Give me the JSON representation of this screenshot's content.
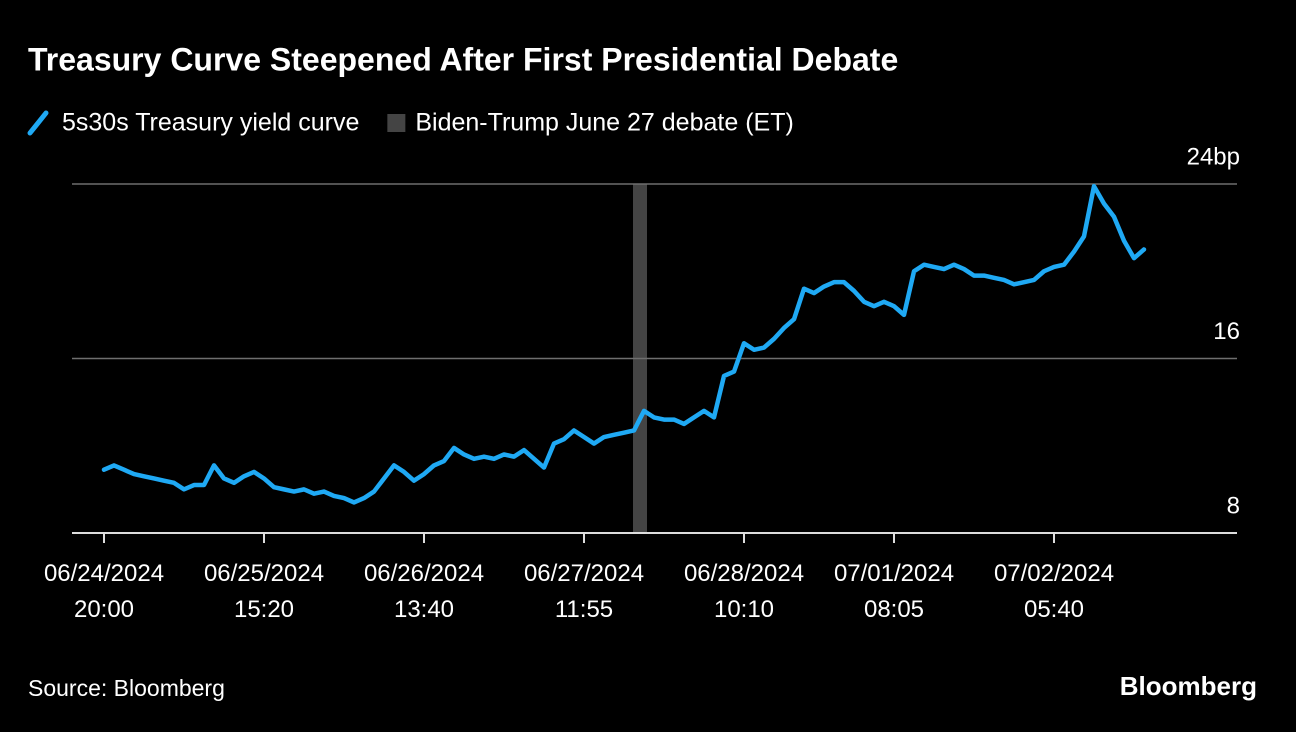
{
  "chart_data": {
    "type": "line",
    "title": "Treasury Curve Steepened After First Presidential Debate",
    "source": "Source: Bloomberg",
    "brand": "Bloomberg",
    "categories": [
      "06/24/2024\n20:00",
      null,
      null,
      null,
      null,
      null,
      null,
      null,
      null,
      null,
      null,
      null,
      null,
      null,
      null,
      null,
      "06/25/2024\n15:20",
      null,
      null,
      null,
      null,
      null,
      null,
      null,
      null,
      null,
      null,
      null,
      null,
      null,
      null,
      null,
      "06/26/2024\n13:40",
      null,
      null,
      null,
      null,
      null,
      null,
      null,
      null,
      null,
      null,
      null,
      null,
      null,
      null,
      null,
      "06/27/2024\n11:55",
      null,
      null,
      null,
      null,
      null,
      null,
      null,
      null,
      null,
      null,
      null,
      null,
      null,
      null,
      null,
      "06/28/2024\n10:10",
      null,
      null,
      null,
      null,
      null,
      null,
      null,
      null,
      null,
      null,
      null,
      null,
      null,
      null,
      "07/01/2024\n08:05",
      null,
      null,
      null,
      null,
      null,
      null,
      null,
      null,
      null,
      null,
      null,
      null,
      null,
      null,
      null,
      "07/02/2024\n05:40",
      null,
      null,
      null,
      null,
      null,
      null,
      null,
      null,
      null
    ],
    "series": [
      {
        "name": "5s30s Treasury yield curve",
        "color": "#1fa9f4",
        "values": [
          10.9,
          11.1,
          10.9,
          10.7,
          10.6,
          10.5,
          10.4,
          10.3,
          10.0,
          10.2,
          10.2,
          11.1,
          10.5,
          10.3,
          10.6,
          10.8,
          10.5,
          10.1,
          10.0,
          9.9,
          10.0,
          9.8,
          9.9,
          9.7,
          9.6,
          9.4,
          9.6,
          9.9,
          10.5,
          11.1,
          10.8,
          10.4,
          10.7,
          11.1,
          11.3,
          11.9,
          11.6,
          11.4,
          11.5,
          11.4,
          11.6,
          11.5,
          11.8,
          11.4,
          11.0,
          12.1,
          12.3,
          12.7,
          12.4,
          12.1,
          12.4,
          12.5,
          12.6,
          12.7,
          13.6,
          13.3,
          13.2,
          13.2,
          13.0,
          13.3,
          13.6,
          13.3,
          15.2,
          15.4,
          16.7,
          16.4,
          16.5,
          16.9,
          17.4,
          17.8,
          19.2,
          19.0,
          19.3,
          19.5,
          19.5,
          19.1,
          18.6,
          18.4,
          18.6,
          18.4,
          18.0,
          20.0,
          20.3,
          20.2,
          20.1,
          20.3,
          20.1,
          19.8,
          19.8,
          19.7,
          19.6,
          19.4,
          19.5,
          19.6,
          20.0,
          20.2,
          20.3,
          20.9,
          21.6,
          23.9,
          23.1,
          22.5,
          21.4,
          20.6,
          21.0
        ]
      }
    ],
    "highlight": {
      "name": "Biden-Trump June 27 debate (ET)",
      "at": 53,
      "color": "#444444"
    },
    "ylim": [
      8,
      24
    ],
    "yticks": [
      8,
      16,
      {
        "value": 24,
        "label": "24bp"
      }
    ],
    "grid": true
  }
}
